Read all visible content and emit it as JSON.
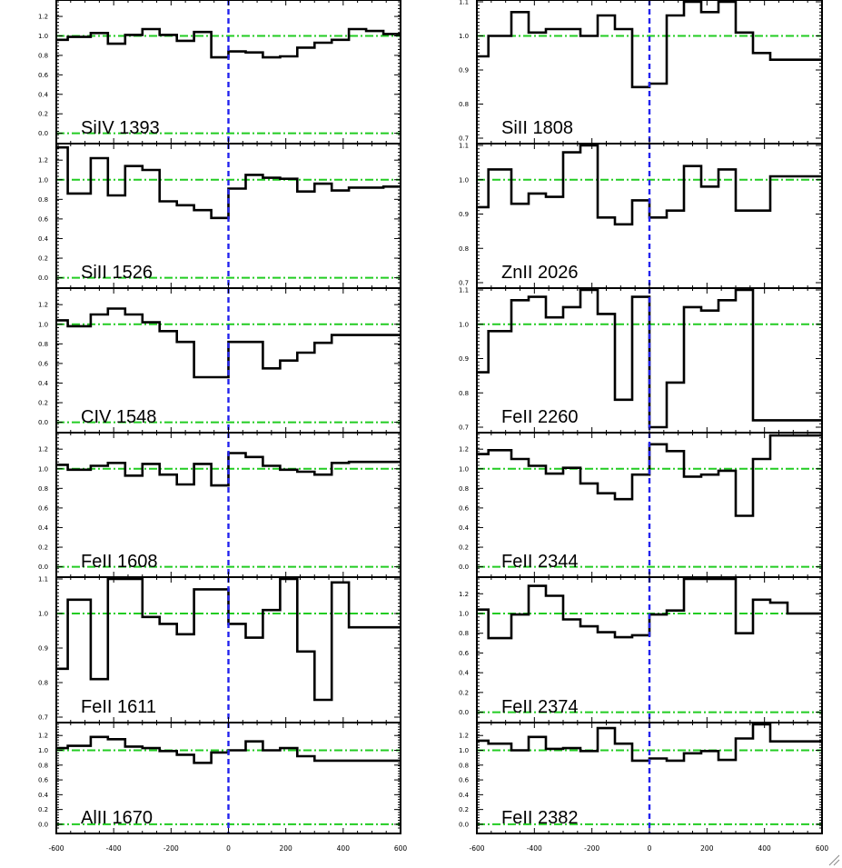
{
  "chart_data": {
    "type": "line",
    "xlim": [
      -600,
      600
    ],
    "x_ticks": [
      "-600",
      "-400",
      "-200",
      "0",
      "200",
      "400",
      "600"
    ],
    "x_tick_values": [
      -600,
      -400,
      -200,
      0,
      200,
      400,
      600
    ],
    "zero_line": 0,
    "grid": false,
    "bin_edges": [
      -600,
      -560,
      -480,
      -420,
      -360,
      -300,
      -240,
      -180,
      -120,
      -60,
      0,
      60,
      120,
      180,
      240,
      300,
      360,
      420,
      480,
      540,
      600
    ],
    "panels": [
      {
        "label": "SiIV 1393",
        "column": "left",
        "ylim": [
          -0.05,
          1.35
        ],
        "y_ticks": [
          "0.0",
          "0.2",
          "0.4",
          "0.6",
          "0.8",
          "1.0",
          "1.2"
        ],
        "y_tick_values": [
          0,
          0.2,
          0.4,
          0.6,
          0.8,
          1.0,
          1.2
        ],
        "continuum": 1.0,
        "zero_level": 0.0,
        "values": [
          0.96,
          0.99,
          1.03,
          0.92,
          1.01,
          1.07,
          1.01,
          0.95,
          1.04,
          0.78,
          0.84,
          0.83,
          0.78,
          0.79,
          0.88,
          0.93,
          0.96,
          1.07,
          1.05,
          1.02
        ]
      },
      {
        "label": "SiII 1526",
        "column": "left",
        "ylim": [
          -0.05,
          1.35
        ],
        "y_ticks": [
          "0.0",
          "0.2",
          "0.4",
          "0.6",
          "0.8",
          "1.0",
          "1.2"
        ],
        "y_tick_values": [
          0,
          0.2,
          0.4,
          0.6,
          0.8,
          1.0,
          1.2
        ],
        "continuum": 1.0,
        "zero_level": 0.0,
        "values": [
          1.33,
          0.86,
          1.22,
          0.84,
          1.14,
          1.1,
          0.78,
          0.74,
          0.69,
          0.61,
          0.91,
          1.05,
          1.02,
          1.01,
          0.88,
          0.96,
          0.89,
          0.92,
          0.92,
          0.93
        ]
      },
      {
        "label": "CIV 1548",
        "column": "left",
        "ylim": [
          -0.05,
          1.35
        ],
        "y_ticks": [
          "0.0",
          "0.2",
          "0.4",
          "0.6",
          "0.8",
          "1.0",
          "1.2"
        ],
        "y_tick_values": [
          0,
          0.2,
          0.4,
          0.6,
          0.8,
          1.0,
          1.2
        ],
        "continuum": 1.0,
        "zero_level": 0.0,
        "values": [
          1.04,
          0.98,
          1.1,
          1.16,
          1.1,
          1.02,
          0.93,
          0.82,
          0.46,
          0.46,
          0.82,
          0.82,
          0.55,
          0.63,
          0.71,
          0.81,
          0.89,
          0.89,
          0.89,
          0.89
        ]
      },
      {
        "label": "FeII 1608",
        "column": "left",
        "ylim": [
          -0.05,
          1.35
        ],
        "y_ticks": [
          "0.0",
          "0.2",
          "0.4",
          "0.6",
          "0.8",
          "1.0",
          "1.2"
        ],
        "y_tick_values": [
          0,
          0.2,
          0.4,
          0.6,
          0.8,
          1.0,
          1.2
        ],
        "continuum": 1.0,
        "zero_level": 0.0,
        "values": [
          1.04,
          0.99,
          1.03,
          1.06,
          0.93,
          1.05,
          0.94,
          0.84,
          1.05,
          0.83,
          1.16,
          1.12,
          1.03,
          0.99,
          0.97,
          0.94,
          1.06,
          1.07,
          1.07,
          1.07
        ]
      },
      {
        "label": "FeII 1611",
        "column": "left",
        "ylim": [
          0.7,
          1.1
        ],
        "y_ticks": [
          "0.7",
          "0.8",
          "0.9",
          "1.0",
          "1.1"
        ],
        "y_tick_values": [
          0.7,
          0.8,
          0.9,
          1.0,
          1.1
        ],
        "continuum": 1.0,
        "values": [
          0.84,
          1.04,
          0.81,
          1.12,
          1.12,
          0.99,
          0.97,
          0.94,
          1.07,
          1.07,
          0.97,
          0.93,
          1.01,
          1.12,
          0.89,
          0.75,
          1.09,
          0.96,
          0.96,
          0.96
        ]
      },
      {
        "label": "AlII 1670",
        "column": "left",
        "ylim": [
          -0.05,
          1.35
        ],
        "y_ticks": [
          "0.0",
          "0.2",
          "0.4",
          "0.6",
          "0.8",
          "1.0",
          "1.2"
        ],
        "y_tick_values": [
          0,
          0.2,
          0.4,
          0.6,
          0.8,
          1.0,
          1.2
        ],
        "continuum": 1.0,
        "zero_level": 0.0,
        "values": [
          1.03,
          1.06,
          1.18,
          1.15,
          1.05,
          1.03,
          0.99,
          0.94,
          0.83,
          0.97,
          1.0,
          1.12,
          1.0,
          1.03,
          0.92,
          0.86,
          0.86,
          0.86,
          0.86,
          0.86
        ]
      },
      {
        "label": "SiII 1808",
        "column": "right",
        "ylim": [
          0.7,
          1.1
        ],
        "y_ticks": [
          "0.7",
          "0.8",
          "0.9",
          "1.0",
          "1.1"
        ],
        "y_tick_values": [
          0.7,
          0.8,
          0.9,
          1.0,
          1.1
        ],
        "continuum": 1.0,
        "values": [
          0.94,
          1.0,
          1.07,
          1.01,
          1.02,
          1.02,
          1.0,
          1.06,
          1.02,
          0.85,
          0.86,
          1.06,
          1.12,
          1.07,
          1.12,
          1.01,
          0.95,
          0.93,
          0.93,
          0.93
        ]
      },
      {
        "label": "ZnII 2026",
        "column": "right",
        "ylim": [
          0.7,
          1.1
        ],
        "y_ticks": [
          "0.7",
          "0.8",
          "0.9",
          "1.0",
          "1.1"
        ],
        "y_tick_values": [
          0.7,
          0.8,
          0.9,
          1.0,
          1.1
        ],
        "continuum": 1.0,
        "values": [
          0.92,
          1.03,
          0.93,
          0.96,
          0.95,
          1.08,
          1.1,
          0.89,
          0.87,
          0.94,
          0.89,
          0.91,
          1.04,
          0.98,
          1.03,
          0.91,
          0.91,
          1.01,
          1.01,
          1.01
        ]
      },
      {
        "label": "FeII 2260",
        "column": "right",
        "ylim": [
          0.7,
          1.1
        ],
        "y_ticks": [
          "0.7",
          "0.8",
          "0.9",
          "1.0",
          "1.1"
        ],
        "y_tick_values": [
          0.7,
          0.8,
          0.9,
          1.0,
          1.1
        ],
        "continuum": 1.0,
        "values": [
          0.86,
          0.98,
          1.07,
          1.08,
          1.02,
          1.05,
          1.12,
          1.03,
          0.78,
          1.08,
          0.7,
          0.83,
          1.05,
          1.04,
          1.07,
          1.1,
          0.72,
          0.72,
          0.72,
          0.72
        ]
      },
      {
        "label": "FeII 2344",
        "column": "right",
        "ylim": [
          -0.05,
          1.35
        ],
        "y_ticks": [
          "0.0",
          "0.2",
          "0.4",
          "0.6",
          "0.8",
          "1.0",
          "1.2"
        ],
        "y_tick_values": [
          0,
          0.2,
          0.4,
          0.6,
          0.8,
          1.0,
          1.2
        ],
        "continuum": 1.0,
        "zero_level": 0.0,
        "values": [
          1.15,
          1.19,
          1.1,
          1.03,
          0.95,
          1.01,
          0.85,
          0.75,
          0.69,
          0.94,
          1.25,
          1.18,
          0.92,
          0.94,
          0.98,
          0.52,
          1.1,
          1.34,
          1.34,
          1.34
        ]
      },
      {
        "label": "FeII 2374",
        "column": "right",
        "ylim": [
          -0.05,
          1.35
        ],
        "y_ticks": [
          "0.0",
          "0.2",
          "0.4",
          "0.6",
          "0.8",
          "1.0",
          "1.2"
        ],
        "y_tick_values": [
          0,
          0.2,
          0.4,
          0.6,
          0.8,
          1.0,
          1.2
        ],
        "continuum": 1.0,
        "zero_level": 0.0,
        "values": [
          1.04,
          0.75,
          0.99,
          1.28,
          1.18,
          0.94,
          0.87,
          0.81,
          0.76,
          0.78,
          0.99,
          1.03,
          1.4,
          1.4,
          1.4,
          0.8,
          1.14,
          1.11,
          1.0,
          1.0
        ]
      },
      {
        "label": "FeII 2382",
        "column": "right",
        "ylim": [
          -0.05,
          1.35
        ],
        "y_ticks": [
          "0.0",
          "0.2",
          "0.4",
          "0.6",
          "0.8",
          "1.0",
          "1.2"
        ],
        "y_tick_values": [
          0,
          0.2,
          0.4,
          0.6,
          0.8,
          1.0,
          1.2
        ],
        "continuum": 1.0,
        "zero_level": 0.0,
        "values": [
          1.13,
          1.09,
          1.0,
          1.18,
          1.02,
          1.03,
          0.99,
          1.3,
          1.09,
          0.86,
          0.89,
          0.86,
          0.96,
          0.99,
          0.87,
          1.16,
          1.4,
          1.12,
          1.12,
          1.12
        ]
      }
    ]
  }
}
